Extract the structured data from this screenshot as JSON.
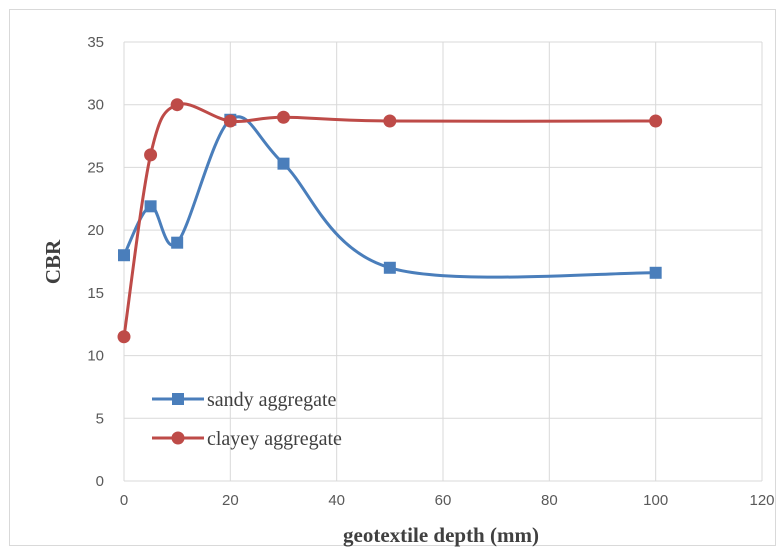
{
  "chart_data": {
    "type": "line",
    "title": "",
    "xlabel": "geotextile depth (mm)",
    "ylabel": "CBR",
    "xlim": [
      0,
      120
    ],
    "ylim": [
      0,
      35
    ],
    "x_ticks": [
      0,
      20,
      40,
      60,
      80,
      100,
      120
    ],
    "y_ticks": [
      0,
      5,
      10,
      15,
      20,
      25,
      30,
      35
    ],
    "grid": true,
    "smooth": true,
    "legend_position": "bottom-left",
    "series": [
      {
        "name": "sandy aggregate",
        "color": "#4a7ebb",
        "marker": "square",
        "x": [
          0,
          5,
          10,
          20,
          30,
          50,
          100
        ],
        "y": [
          18,
          21.9,
          19,
          28.8,
          25.3,
          17,
          16.6
        ]
      },
      {
        "name": "clayey aggregate",
        "color": "#be4b48",
        "marker": "circle",
        "x": [
          0,
          5,
          10,
          20,
          30,
          50,
          100
        ],
        "y": [
          11.5,
          26,
          30,
          28.7,
          29,
          28.7,
          28.7
        ]
      }
    ]
  }
}
